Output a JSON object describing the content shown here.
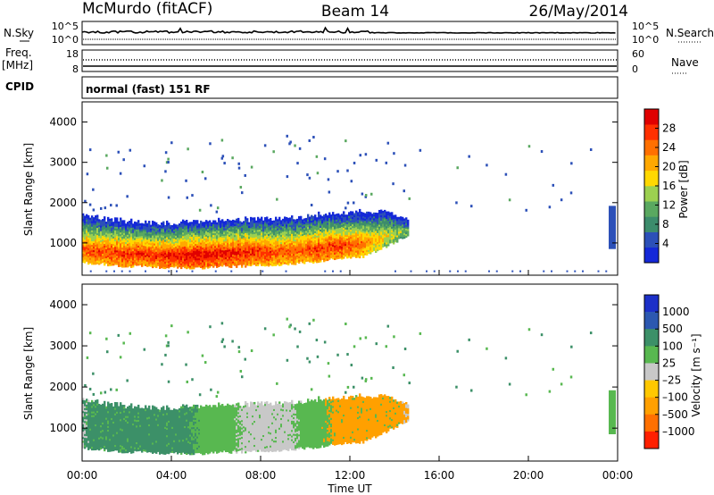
{
  "header": {
    "station": "McMurdo (fitACF)",
    "beam": "Beam 14",
    "date": "26/May/2014"
  },
  "noise_panel": {
    "left_label": "N.Sky",
    "right_label": "N.Search",
    "left_ticks": [
      "10^5",
      "10^0"
    ],
    "right_ticks": [
      "10^5",
      "10^0"
    ]
  },
  "freq_panel": {
    "left_label_top": "Freq.",
    "left_label_bottom": "[MHz]",
    "right_label": "Nave",
    "left_ticks": [
      "18",
      "8"
    ],
    "right_ticks": [
      "60",
      "0"
    ]
  },
  "cpid": {
    "label": "CPID",
    "mode": "normal (fast) 151 RF"
  },
  "colors": {
    "power": [
      "#1428d8",
      "#2c50b8",
      "#3c8c6c",
      "#5aa860",
      "#9cd050",
      "#ffd800",
      "#ffa800",
      "#ff7000",
      "#ff3000",
      "#e00000"
    ],
    "velocity": [
      "#1c30c8",
      "#2c58b0",
      "#3c9068",
      "#58b850",
      "#c8c8c8",
      "#ffc800",
      "#ffa000",
      "#ff7000",
      "#ff2000"
    ]
  },
  "chart_data": [
    {
      "type": "heatmap",
      "quantity": "power",
      "ylabel": "Slant Range [km]",
      "xlabel": "",
      "ylim": [
        200,
        4500
      ],
      "yticks": [
        "1000",
        "2000",
        "3000",
        "4000"
      ],
      "colorbar_label": "Power [dB]",
      "colorbar_ticks": [
        "4",
        "8",
        "12",
        "16",
        "20",
        "24",
        "28"
      ],
      "colorbar_range": [
        0,
        32
      ],
      "echo_band": {
        "time_start_h": 0.0,
        "time_end_h": 14.6,
        "lower_edge_km": [
          520,
          470,
          420,
          410,
          390,
          380,
          420,
          430,
          450,
          490,
          540,
          620,
          660,
          900,
          1200
        ],
        "upper_edge_km": [
          1700,
          1580,
          1520,
          1480,
          1470,
          1500,
          1540,
          1560,
          1580,
          1620,
          1680,
          1720,
          1750,
          1760,
          1600
        ],
        "peak_power_db": [
          26,
          27,
          28,
          28,
          30,
          31,
          30,
          29,
          27,
          26,
          27,
          28,
          24,
          18,
          12
        ]
      }
    },
    {
      "type": "heatmap",
      "quantity": "velocity",
      "ylabel": "Slant Range [km]",
      "xlabel": "Time UT",
      "ylim": [
        200,
        4500
      ],
      "yticks": [
        "1000",
        "2000",
        "3000",
        "4000"
      ],
      "xticks": [
        "00:00",
        "04:00",
        "08:00",
        "12:00",
        "16:00",
        "20:00",
        "00:00"
      ],
      "colorbar_label": "Velocity [m s⁻¹]",
      "colorbar_ticks": [
        "1000",
        "500",
        "100",
        "25",
        "–25",
        "–100",
        "–500",
        "–1000"
      ],
      "velocity_bands_m_s": [
        {
          "t_start_h": 0.0,
          "t_end_h": 5.0,
          "velocity": 300
        },
        {
          "t_start_h": 5.0,
          "t_end_h": 7.0,
          "velocity": 60
        },
        {
          "t_start_h": 7.0,
          "t_end_h": 9.5,
          "velocity": 0
        },
        {
          "t_start_h": 9.5,
          "t_end_h": 11.0,
          "velocity": 40
        },
        {
          "t_start_h": 11.0,
          "t_end_h": 14.6,
          "velocity": -200
        }
      ]
    }
  ]
}
